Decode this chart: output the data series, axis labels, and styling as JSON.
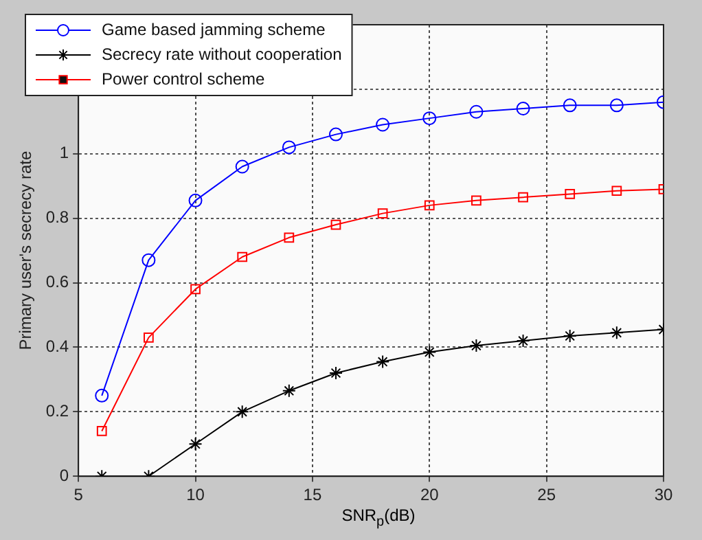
{
  "chart_data": {
    "type": "line",
    "xlabel": "SNR$_{p}$(dB)",
    "ylabel": "Primary user's secrecy rate",
    "x": [
      6,
      8,
      10,
      12,
      14,
      16,
      18,
      20,
      22,
      24,
      26,
      28,
      30
    ],
    "series": [
      {
        "name": "Game based jamming scheme",
        "color": "#0000ff",
        "marker": "circle",
        "values": [
          0.25,
          0.67,
          0.855,
          0.96,
          1.02,
          1.06,
          1.09,
          1.11,
          1.13,
          1.14,
          1.15,
          1.15,
          1.16
        ]
      },
      {
        "name": "Secrecy rate without cooperation",
        "color": "#000000",
        "marker": "cross",
        "values": [
          0,
          0,
          0.1,
          0.2,
          0.265,
          0.32,
          0.355,
          0.385,
          0.405,
          0.42,
          0.435,
          0.445,
          0.455
        ]
      },
      {
        "name": "Power control scheme",
        "color": "#ff0000",
        "marker": "square",
        "values": [
          0.14,
          0.43,
          0.58,
          0.68,
          0.74,
          0.78,
          0.815,
          0.84,
          0.855,
          0.865,
          0.875,
          0.885,
          0.89
        ]
      }
    ],
    "xlim": [
      5,
      30
    ],
    "xticks": [
      5,
      10,
      15,
      20,
      25,
      30
    ],
    "ylim": [
      0,
      1.4
    ],
    "yticks": [
      0,
      0.2,
      0.4,
      0.6,
      0.8,
      1,
      {
        "value": 1.2,
        "label": null
      }
    ],
    "grid": true,
    "legend": "top left",
    "line_style": "solid"
  }
}
